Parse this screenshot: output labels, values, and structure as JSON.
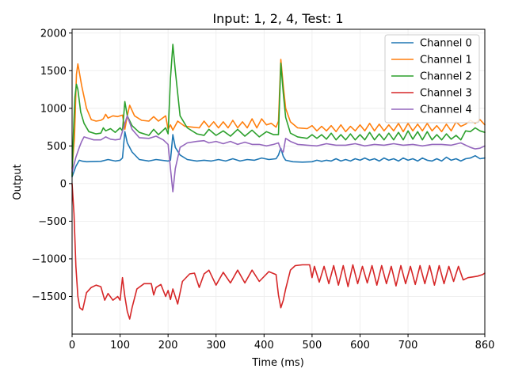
{
  "chart_data": {
    "type": "line",
    "title": "Input: 1, 2, 4, Test: 1",
    "xlabel": "Time (ms)",
    "ylabel": "Output",
    "xlim": [
      0,
      860
    ],
    "ylim": [
      -2000,
      2050
    ],
    "xticks": [
      0,
      100,
      200,
      300,
      400,
      500,
      600,
      700,
      860
    ],
    "yticks": [
      -1500,
      -1000,
      -500,
      0,
      500,
      1000,
      1500,
      2000
    ],
    "ytick_labels": [
      "−1500",
      "−1000",
      "−500",
      "0",
      "500",
      "1000",
      "1500",
      "2000"
    ],
    "grid": true,
    "legend_position": "top-right",
    "series": [
      {
        "name": "Channel 0",
        "color": "#1f77b4",
        "x": [
          0,
          8,
          15,
          20,
          30,
          60,
          75,
          90,
          100,
          105,
          110,
          115,
          125,
          140,
          160,
          175,
          200,
          205,
          210,
          215,
          225,
          240,
          260,
          275,
          290,
          305,
          320,
          335,
          350,
          365,
          380,
          395,
          410,
          425,
          430,
          435,
          440,
          445,
          460,
          480,
          500,
          510,
          520,
          530,
          540,
          550,
          560,
          570,
          580,
          590,
          600,
          610,
          620,
          630,
          640,
          650,
          660,
          670,
          680,
          690,
          700,
          710,
          720,
          730,
          740,
          750,
          760,
          770,
          780,
          790,
          800,
          810,
          820,
          830,
          840,
          850,
          860
        ],
        "values": [
          90,
          230,
          310,
          300,
          290,
          295,
          320,
          300,
          310,
          340,
          690,
          540,
          420,
          320,
          300,
          320,
          300,
          310,
          650,
          480,
          380,
          320,
          300,
          310,
          300,
          320,
          300,
          330,
          300,
          320,
          310,
          340,
          320,
          330,
          380,
          470,
          360,
          310,
          290,
          285,
          290,
          310,
          295,
          310,
          300,
          330,
          300,
          320,
          300,
          330,
          310,
          340,
          310,
          330,
          300,
          340,
          310,
          330,
          300,
          340,
          310,
          330,
          300,
          340,
          310,
          300,
          330,
          300,
          350,
          310,
          330,
          300,
          330,
          340,
          370,
          330,
          340
        ]
      },
      {
        "name": "Channel 1",
        "color": "#ff7f0e",
        "x": [
          0,
          5,
          9,
          12,
          20,
          30,
          40,
          50,
          60,
          65,
          70,
          75,
          85,
          95,
          100,
          105,
          110,
          115,
          120,
          130,
          145,
          160,
          170,
          180,
          195,
          200,
          205,
          210,
          220,
          235,
          250,
          265,
          275,
          285,
          295,
          305,
          315,
          325,
          335,
          345,
          355,
          365,
          375,
          385,
          395,
          405,
          415,
          425,
          430,
          435,
          440,
          445,
          455,
          470,
          490,
          500,
          510,
          520,
          530,
          540,
          550,
          560,
          570,
          580,
          590,
          600,
          610,
          620,
          630,
          640,
          650,
          660,
          670,
          680,
          690,
          700,
          710,
          720,
          730,
          740,
          750,
          760,
          770,
          780,
          790,
          800,
          810,
          820,
          830,
          840,
          850,
          860
        ],
        "values": [
          200,
          600,
          1450,
          1590,
          1300,
          1000,
          850,
          830,
          840,
          860,
          920,
          870,
          900,
          890,
          900,
          910,
          720,
          900,
          1040,
          900,
          840,
          830,
          890,
          830,
          900,
          720,
          780,
          710,
          830,
          760,
          750,
          740,
          830,
          750,
          820,
          740,
          820,
          740,
          840,
          740,
          820,
          740,
          860,
          740,
          860,
          780,
          800,
          750,
          830,
          1650,
          1300,
          1000,
          820,
          740,
          730,
          770,
          700,
          760,
          700,
          770,
          690,
          780,
          690,
          760,
          700,
          780,
          700,
          800,
          700,
          790,
          700,
          780,
          700,
          800,
          690,
          800,
          700,
          790,
          700,
          800,
          700,
          770,
          690,
          790,
          700,
          820,
          760,
          790,
          840,
          800,
          850,
          780
        ]
      },
      {
        "name": "Channel 2",
        "color": "#2ca02c",
        "x": [
          0,
          3,
          6,
          9,
          12,
          18,
          25,
          35,
          50,
          60,
          65,
          70,
          80,
          90,
          100,
          105,
          110,
          115,
          125,
          140,
          160,
          170,
          180,
          195,
          200,
          205,
          210,
          215,
          225,
          240,
          260,
          275,
          285,
          300,
          315,
          330,
          345,
          360,
          375,
          390,
          405,
          420,
          430,
          435,
          440,
          445,
          455,
          470,
          490,
          500,
          510,
          520,
          530,
          540,
          550,
          560,
          570,
          580,
          590,
          600,
          610,
          620,
          630,
          640,
          650,
          660,
          670,
          680,
          690,
          700,
          710,
          720,
          730,
          740,
          750,
          760,
          770,
          780,
          790,
          800,
          810,
          820,
          830,
          840,
          850,
          860
        ],
        "values": [
          100,
          700,
          1150,
          1320,
          1250,
          950,
          800,
          690,
          660,
          670,
          740,
          700,
          730,
          680,
          740,
          700,
          1090,
          900,
          770,
          680,
          640,
          720,
          650,
          740,
          660,
          1400,
          1850,
          1500,
          900,
          740,
          660,
          640,
          720,
          640,
          700,
          630,
          720,
          630,
          710,
          620,
          690,
          650,
          650,
          1600,
          1200,
          880,
          670,
          620,
          600,
          650,
          600,
          650,
          590,
          670,
          580,
          650,
          580,
          660,
          580,
          650,
          580,
          680,
          580,
          660,
          580,
          670,
          580,
          680,
          580,
          700,
          590,
          690,
          580,
          690,
          580,
          650,
          580,
          660,
          590,
          640,
          580,
          700,
          690,
          740,
          700,
          680
        ]
      },
      {
        "name": "Channel 3",
        "color": "#d62728",
        "x": [
          0,
          4,
          8,
          12,
          16,
          22,
          30,
          40,
          50,
          60,
          68,
          75,
          85,
          95,
          100,
          105,
          110,
          115,
          120,
          125,
          135,
          150,
          165,
          170,
          175,
          185,
          195,
          200,
          205,
          210,
          220,
          230,
          245,
          255,
          265,
          275,
          285,
          300,
          315,
          330,
          345,
          360,
          375,
          390,
          410,
          425,
          430,
          435,
          440,
          445,
          455,
          465,
          480,
          495,
          500,
          505,
          515,
          525,
          535,
          545,
          555,
          565,
          575,
          585,
          595,
          605,
          615,
          625,
          635,
          645,
          655,
          665,
          675,
          685,
          695,
          705,
          715,
          725,
          735,
          745,
          755,
          765,
          775,
          785,
          795,
          805,
          815,
          825,
          835,
          845,
          855,
          860
        ],
        "values": [
          0,
          -400,
          -1100,
          -1500,
          -1650,
          -1680,
          -1450,
          -1380,
          -1350,
          -1370,
          -1550,
          -1460,
          -1550,
          -1500,
          -1550,
          -1250,
          -1500,
          -1700,
          -1800,
          -1650,
          -1400,
          -1330,
          -1330,
          -1480,
          -1380,
          -1340,
          -1500,
          -1420,
          -1540,
          -1400,
          -1600,
          -1300,
          -1200,
          -1190,
          -1380,
          -1200,
          -1150,
          -1350,
          -1180,
          -1320,
          -1150,
          -1320,
          -1150,
          -1300,
          -1170,
          -1210,
          -1480,
          -1650,
          -1550,
          -1400,
          -1150,
          -1090,
          -1080,
          -1080,
          -1250,
          -1100,
          -1310,
          -1100,
          -1330,
          -1090,
          -1350,
          -1090,
          -1370,
          -1080,
          -1330,
          -1100,
          -1320,
          -1090,
          -1350,
          -1090,
          -1330,
          -1100,
          -1360,
          -1090,
          -1330,
          -1100,
          -1340,
          -1090,
          -1330,
          -1090,
          -1350,
          -1090,
          -1330,
          -1100,
          -1300,
          -1100,
          -1280,
          -1250,
          -1240,
          -1230,
          -1210,
          -1190
        ]
      },
      {
        "name": "Channel 4",
        "color": "#9467bd",
        "x": [
          0,
          8,
          15,
          20,
          25,
          30,
          45,
          60,
          70,
          80,
          90,
          100,
          110,
          115,
          125,
          140,
          160,
          175,
          190,
          200,
          205,
          210,
          215,
          225,
          240,
          260,
          275,
          285,
          300,
          315,
          330,
          345,
          360,
          375,
          390,
          405,
          420,
          430,
          435,
          440,
          445,
          455,
          470,
          490,
          510,
          530,
          550,
          570,
          590,
          610,
          630,
          650,
          670,
          690,
          710,
          730,
          750,
          770,
          790,
          810,
          830,
          840,
          850,
          860
        ],
        "values": [
          150,
          350,
          480,
          560,
          620,
          610,
          580,
          580,
          620,
          590,
          580,
          590,
          800,
          900,
          720,
          610,
          600,
          630,
          580,
          520,
          200,
          -110,
          200,
          480,
          540,
          560,
          570,
          540,
          560,
          530,
          560,
          520,
          550,
          520,
          520,
          500,
          520,
          540,
          450,
          420,
          600,
          560,
          520,
          510,
          500,
          530,
          510,
          510,
          530,
          500,
          520,
          510,
          530,
          510,
          520,
          500,
          520,
          520,
          510,
          540,
          480,
          460,
          470,
          500
        ]
      }
    ]
  }
}
